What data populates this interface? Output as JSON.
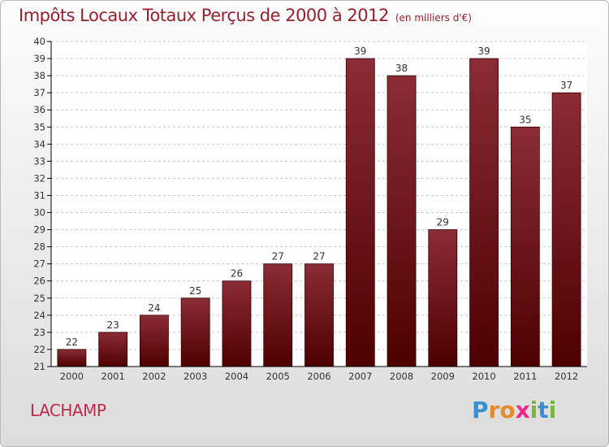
{
  "title": "Impôts Locaux Totaux Perçus de 2000 à 2012",
  "unit_note": "(en milliers d'€)",
  "commune": "LACHAMP",
  "brand": {
    "text": "Proxiti",
    "letters": [
      {
        "char": "P",
        "color": "#3a8fd0"
      },
      {
        "char": "r",
        "color": "#e8892a"
      },
      {
        "char": "o",
        "color": "#e8892a"
      },
      {
        "char": "x",
        "color": "#ec2a8a"
      },
      {
        "char": "i",
        "color": "#7ab83a"
      },
      {
        "char": "t",
        "color": "#3a8fd0"
      },
      {
        "char": "i",
        "color": "#7ab83a"
      }
    ]
  },
  "colors": {
    "title": "#9a1f2e",
    "bar_top": "#8a2c35",
    "bar_bottom": "#4e0000",
    "grid": "#c8c8c8",
    "axis": "#000000",
    "text": "#333333"
  },
  "chart_data": {
    "type": "bar",
    "title": "Impôts Locaux Totaux Perçus de 2000 à 2012",
    "xlabel": "",
    "ylabel": "",
    "ylim": [
      21,
      40
    ],
    "yticks": [
      21,
      22,
      23,
      24,
      25,
      26,
      27,
      28,
      29,
      30,
      31,
      32,
      33,
      34,
      35,
      36,
      37,
      38,
      39,
      40
    ],
    "grid": true,
    "categories": [
      "2000",
      "2001",
      "2002",
      "2003",
      "2004",
      "2005",
      "2006",
      "2007",
      "2008",
      "2009",
      "2010",
      "2011",
      "2012"
    ],
    "values": [
      22,
      23,
      24,
      25,
      26,
      27,
      27,
      39,
      38,
      29,
      39,
      35,
      37
    ]
  }
}
